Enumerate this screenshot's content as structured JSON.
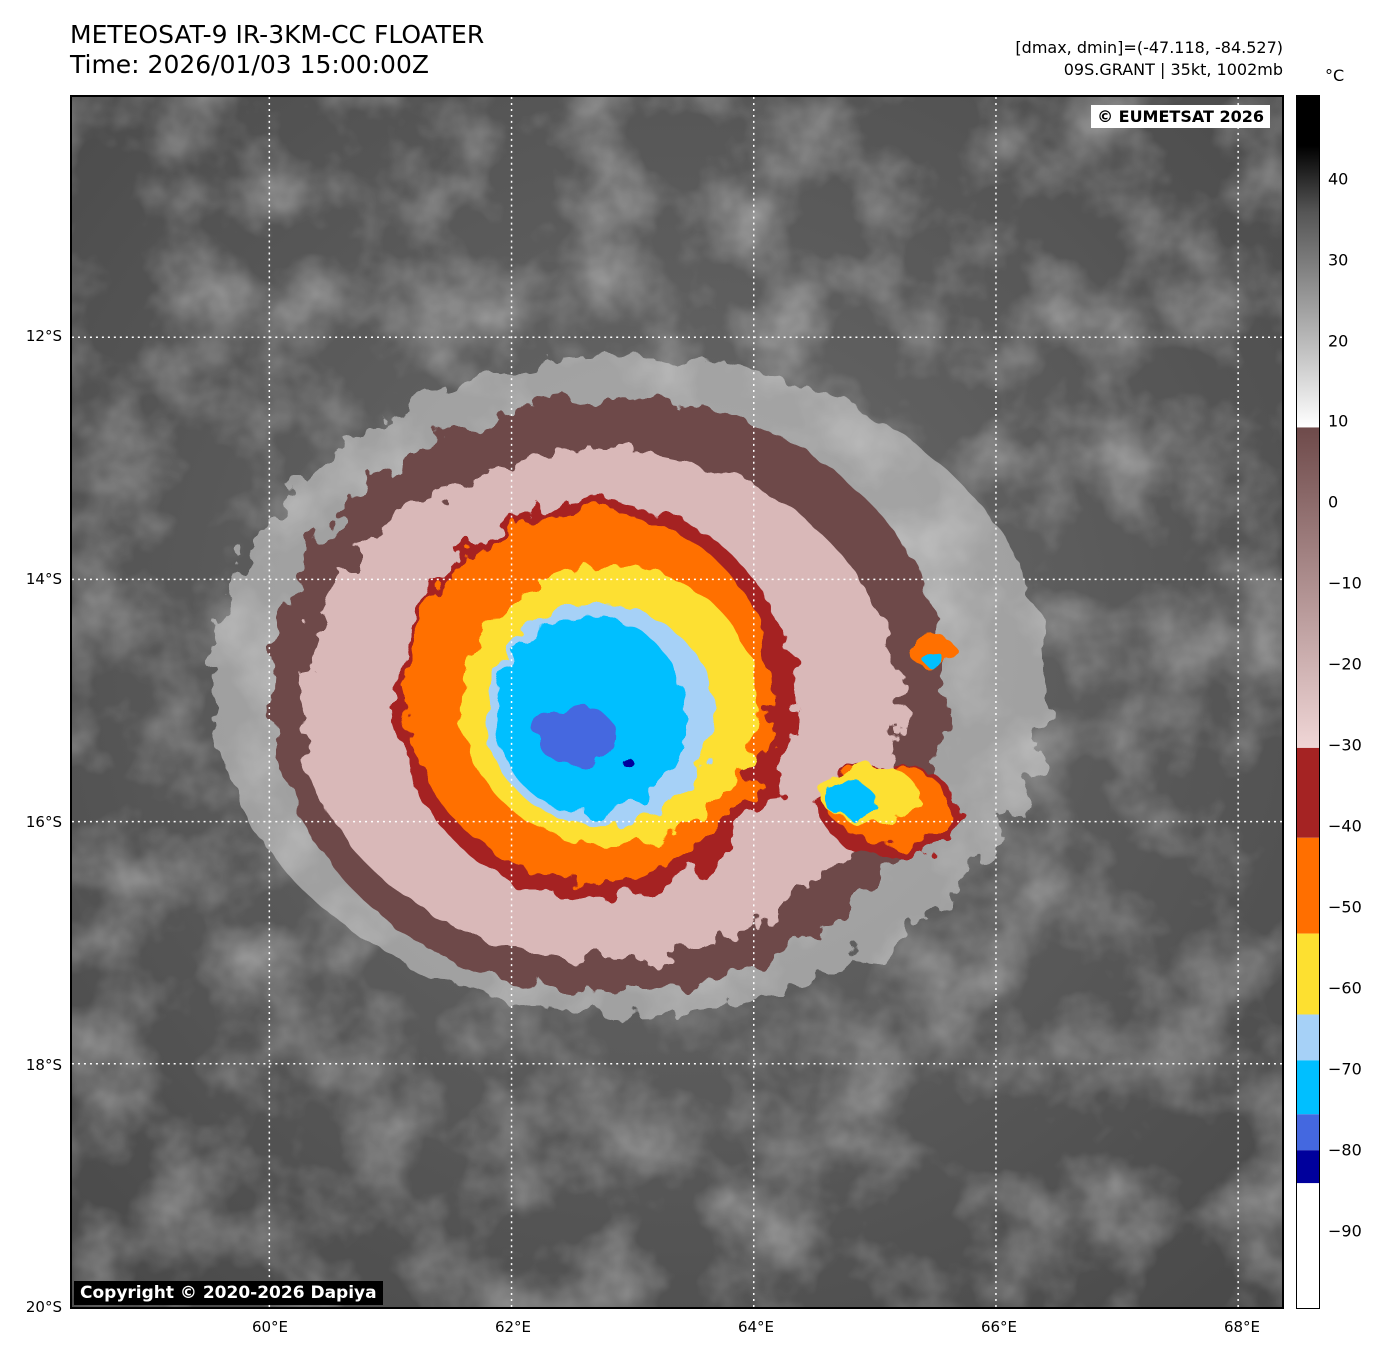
{
  "header": {
    "title_line1": "METEOSAT-9 IR-3KM-CC FLOATER",
    "title_line2": "Time: 2026/01/03 15:00:00Z",
    "info_line1": "[dmax, dmin]=(-47.118, -84.527)",
    "info_line2": "09S.GRANT | 35kt, 1002mb"
  },
  "map": {
    "lat_labels": [
      "12°S",
      "14°S",
      "16°S",
      "18°S",
      "20°S"
    ],
    "lon_labels": [
      "60°E",
      "62°E",
      "64°E",
      "66°E",
      "68°E"
    ],
    "extent": {
      "lon_min": 58.36,
      "lon_max": 68.34,
      "lat_min": -19.98,
      "lat_max": -10.0
    },
    "storm_center": {
      "lon": 62.9,
      "lat": -15.1
    },
    "copyright_top": "© EUMETSAT 2026",
    "copyright_bottom": "Copyright © 2020-2026 Dapiya"
  },
  "colorbar": {
    "unit": "°C",
    "ticks": [
      "40",
      "30",
      "20",
      "10",
      "0",
      "−10",
      "−20",
      "−30",
      "−40",
      "−50",
      "−60",
      "−70",
      "−80",
      "−90"
    ],
    "range": [
      -100,
      50
    ],
    "colors": {
      "warm_black": "#000000",
      "gray_mid": "#808080",
      "white": "#ffffff",
      "brown": "#6e4a4a",
      "pink": "#f0d6d6",
      "dark_red": "#a52323",
      "orange": "#ff6f00",
      "yellow": "#fde030",
      "light_blue": "#a6d1f7",
      "cyan": "#00bfff",
      "royal_blue": "#4468e0",
      "navy": "#00009c"
    }
  }
}
